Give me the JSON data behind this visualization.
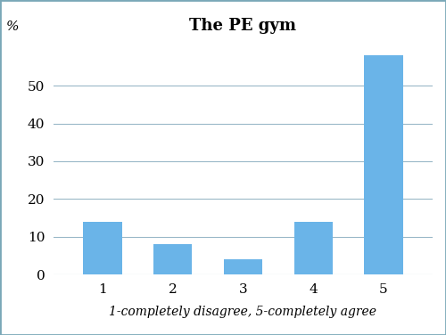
{
  "title": "The PE gym",
  "categories": [
    "1",
    "2",
    "3",
    "4",
    "5"
  ],
  "values": [
    14,
    8,
    4,
    14,
    58
  ],
  "bar_color": "#6ab4e8",
  "ylabel": "%",
  "xlabel_note": "1-completely disagree, 5-completely agree",
  "ylim": [
    0,
    62
  ],
  "yticks": [
    0,
    10,
    20,
    30,
    40,
    50
  ],
  "title_fontsize": 13,
  "tick_fontsize": 11,
  "note_fontsize": 10,
  "ylabel_fontsize": 11,
  "background_color": "#ffffff",
  "grid_color": "#9ab8c8",
  "border_color": "#7aa8b8"
}
